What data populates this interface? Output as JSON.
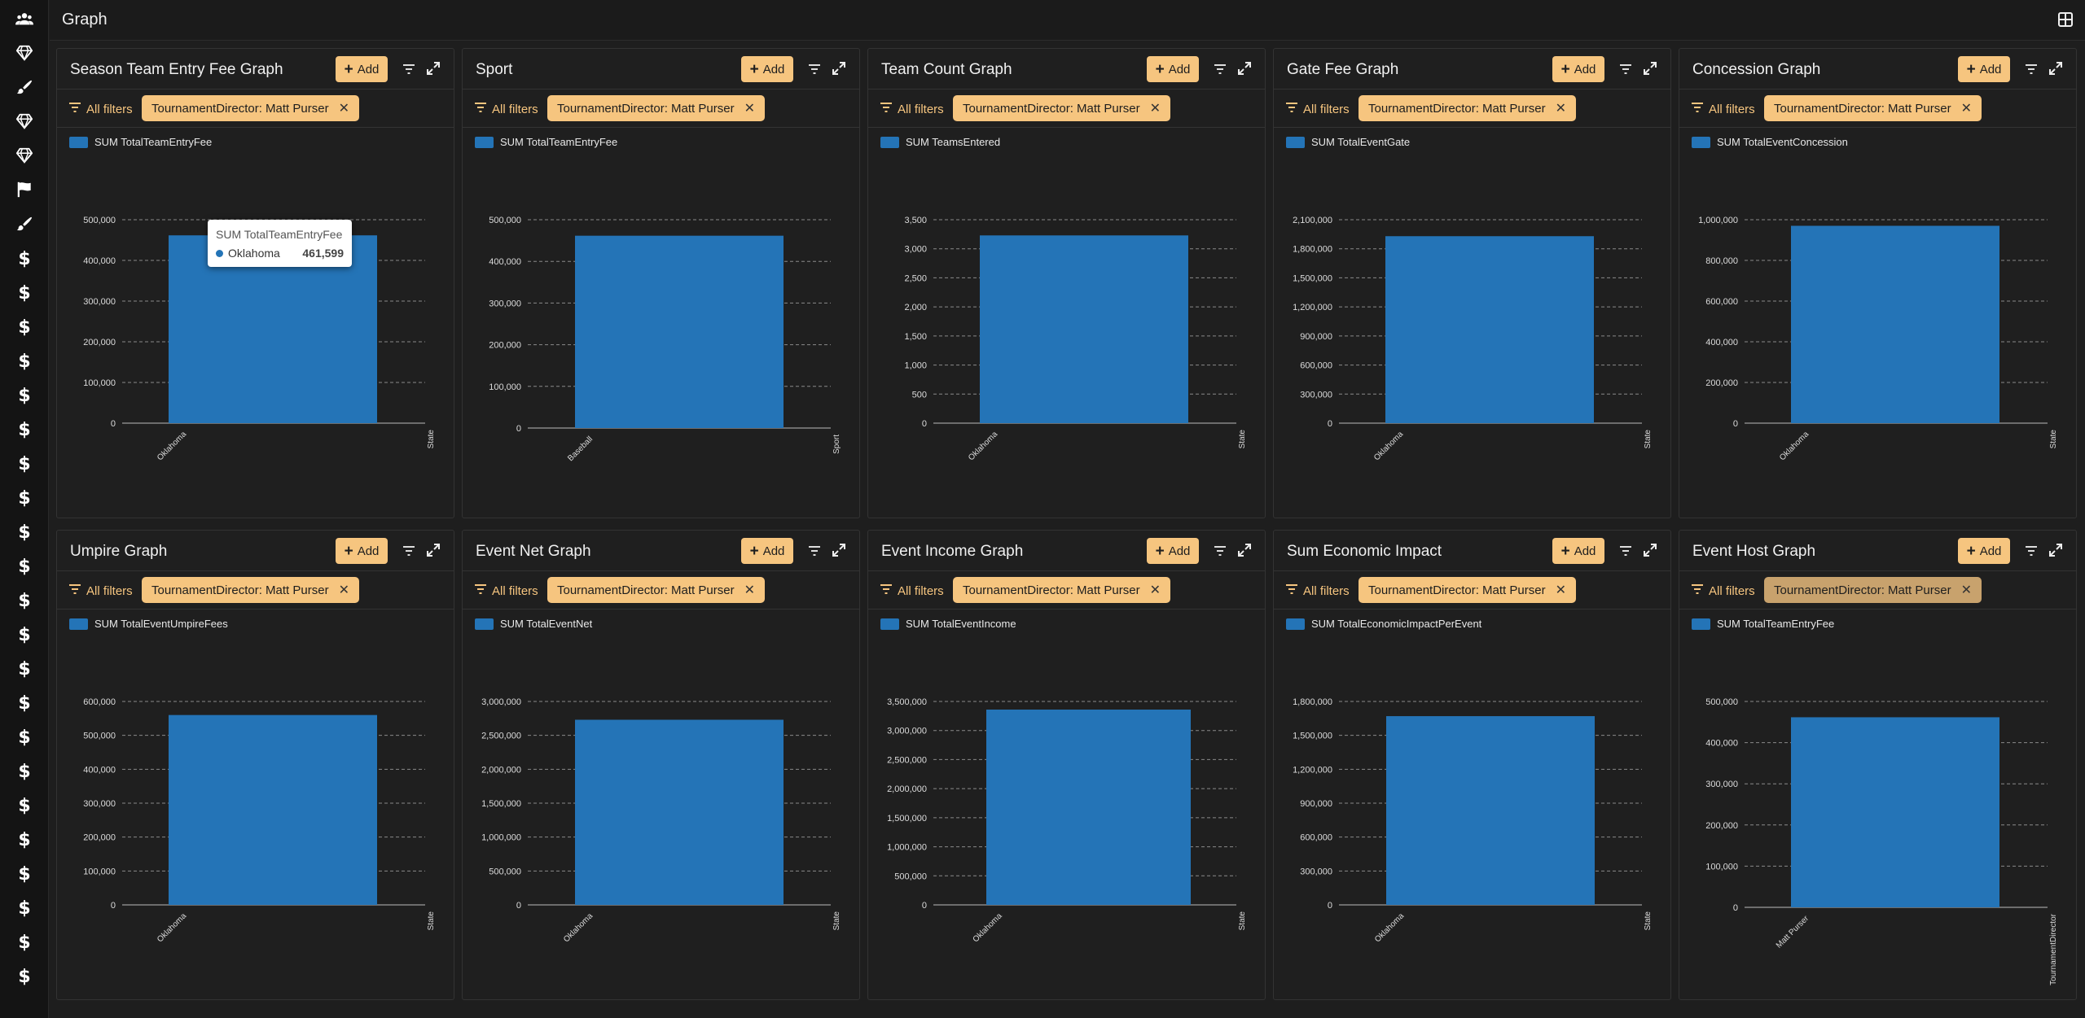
{
  "page": {
    "title": "Graph"
  },
  "sidebar": {
    "items": [
      {
        "icon": "users-icon"
      },
      {
        "icon": "diamond-icon"
      },
      {
        "icon": "brush-icon"
      },
      {
        "icon": "diamond-icon"
      },
      {
        "icon": "diamond-icon"
      },
      {
        "icon": "flag-icon"
      },
      {
        "icon": "brush-icon"
      },
      {
        "icon": "dollar-icon"
      },
      {
        "icon": "dollar-icon"
      },
      {
        "icon": "dollar-icon"
      },
      {
        "icon": "dollar-icon"
      },
      {
        "icon": "dollar-icon"
      },
      {
        "icon": "dollar-icon"
      },
      {
        "icon": "dollar-icon"
      },
      {
        "icon": "dollar-icon"
      },
      {
        "icon": "dollar-icon"
      },
      {
        "icon": "dollar-icon"
      },
      {
        "icon": "dollar-icon"
      },
      {
        "icon": "dollar-icon"
      },
      {
        "icon": "dollar-icon"
      },
      {
        "icon": "dollar-icon"
      },
      {
        "icon": "dollar-icon"
      },
      {
        "icon": "dollar-icon"
      },
      {
        "icon": "dollar-icon"
      },
      {
        "icon": "dollar-icon"
      },
      {
        "icon": "dollar-icon"
      },
      {
        "icon": "dollar-icon"
      },
      {
        "icon": "dollar-icon"
      },
      {
        "icon": "dollar-icon"
      }
    ]
  },
  "colors": {
    "accent": "#f6c57f",
    "bar": "#2474b7",
    "background": "#1e1e1e"
  },
  "labels": {
    "add": "Add",
    "all_filters": "All filters",
    "dollar_glyph": "$"
  },
  "tooltip": {
    "title": "SUM TotalTeamEntryFee",
    "category": "Oklahoma",
    "value": "461,599"
  },
  "panels": [
    {
      "title": "Season Team Entry Fee Graph",
      "filter": "TournamentDirector: Matt Purser",
      "chart_data": {
        "type": "bar",
        "legend": "SUM TotalTeamEntryFee",
        "categories": [
          "Oklahoma"
        ],
        "values": [
          461599
        ],
        "ylim": [
          0,
          500000
        ],
        "yticks": [
          "0",
          "100,000",
          "200,000",
          "300,000",
          "400,000",
          "500,000"
        ],
        "xlabel": "State"
      }
    },
    {
      "title": "Sport",
      "filter": "TournamentDirector: Matt Purser",
      "chart_data": {
        "type": "bar",
        "legend": "SUM TotalTeamEntryFee",
        "categories": [
          "Baseball"
        ],
        "values": [
          461599
        ],
        "ylim": [
          0,
          500000
        ],
        "yticks": [
          "0",
          "100,000",
          "200,000",
          "300,000",
          "400,000",
          "500,000"
        ],
        "xlabel": "Sport"
      }
    },
    {
      "title": "Team Count Graph",
      "filter": "TournamentDirector: Matt Purser",
      "chart_data": {
        "type": "bar",
        "legend": "SUM TeamsEntered",
        "categories": [
          "Oklahoma"
        ],
        "values": [
          3230
        ],
        "ylim": [
          0,
          3500
        ],
        "yticks": [
          "0",
          "500",
          "1,000",
          "1,500",
          "2,000",
          "2,500",
          "3,000",
          "3,500"
        ],
        "xlabel": "State"
      }
    },
    {
      "title": "Gate Fee Graph",
      "filter": "TournamentDirector: Matt Purser",
      "chart_data": {
        "type": "bar",
        "legend": "SUM TotalEventGate",
        "categories": [
          "Oklahoma"
        ],
        "values": [
          1930000
        ],
        "ylim": [
          0,
          2100000
        ],
        "yticks": [
          "0",
          "300,000",
          "600,000",
          "900,000",
          "1,200,000",
          "1,500,000",
          "1,800,000",
          "2,100,000"
        ],
        "xlabel": "State"
      }
    },
    {
      "title": "Concession Graph",
      "filter": "TournamentDirector: Matt Purser",
      "chart_data": {
        "type": "bar",
        "legend": "SUM TotalEventConcession",
        "categories": [
          "Oklahoma"
        ],
        "values": [
          970000
        ],
        "ylim": [
          0,
          1000000
        ],
        "yticks": [
          "0",
          "200,000",
          "400,000",
          "600,000",
          "800,000",
          "1,000,000"
        ],
        "xlabel": "State"
      }
    },
    {
      "title": "Umpire Graph",
      "filter": "TournamentDirector: Matt Purser",
      "chart_data": {
        "type": "bar",
        "legend": "SUM TotalEventUmpireFees",
        "categories": [
          "Oklahoma"
        ],
        "values": [
          560000
        ],
        "ylim": [
          0,
          600000
        ],
        "yticks": [
          "0",
          "100,000",
          "200,000",
          "300,000",
          "400,000",
          "500,000",
          "600,000"
        ],
        "xlabel": "State"
      }
    },
    {
      "title": "Event Net Graph",
      "filter": "TournamentDirector: Matt Purser",
      "chart_data": {
        "type": "bar",
        "legend": "SUM TotalEventNet",
        "categories": [
          "Oklahoma"
        ],
        "values": [
          2730000
        ],
        "ylim": [
          0,
          3000000
        ],
        "yticks": [
          "0",
          "500,000",
          "1,000,000",
          "1,500,000",
          "2,000,000",
          "2,500,000",
          "3,000,000"
        ],
        "xlabel": "State"
      }
    },
    {
      "title": "Event Income Graph",
      "filter": "TournamentDirector: Matt Purser",
      "chart_data": {
        "type": "bar",
        "legend": "SUM TotalEventIncome",
        "categories": [
          "Oklahoma"
        ],
        "values": [
          3360000
        ],
        "ylim": [
          0,
          3500000
        ],
        "yticks": [
          "0",
          "500,000",
          "1,000,000",
          "1,500,000",
          "2,000,000",
          "2,500,000",
          "3,000,000",
          "3,500,000"
        ],
        "xlabel": "State"
      }
    },
    {
      "title": "Sum Economic Impact",
      "filter": "TournamentDirector: Matt Purser",
      "chart_data": {
        "type": "bar",
        "legend": "SUM TotalEconomicImpactPerEvent",
        "categories": [
          "Oklahoma"
        ],
        "values": [
          1670000
        ],
        "ylim": [
          0,
          1800000
        ],
        "yticks": [
          "0",
          "300,000",
          "600,000",
          "900,000",
          "1,200,000",
          "1,500,000",
          "1,800,000"
        ],
        "xlabel": "State"
      }
    },
    {
      "title": "Event Host Graph",
      "filter": "TournamentDirector: Matt Purser",
      "filter_muted": true,
      "chart_data": {
        "type": "bar",
        "legend": "SUM TotalTeamEntryFee",
        "categories": [
          "Matt Purser"
        ],
        "values": [
          461599
        ],
        "ylim": [
          0,
          500000
        ],
        "yticks": [
          "0",
          "100,000",
          "200,000",
          "300,000",
          "400,000",
          "500,000"
        ],
        "xlabel": "TournamentDirector"
      }
    }
  ]
}
